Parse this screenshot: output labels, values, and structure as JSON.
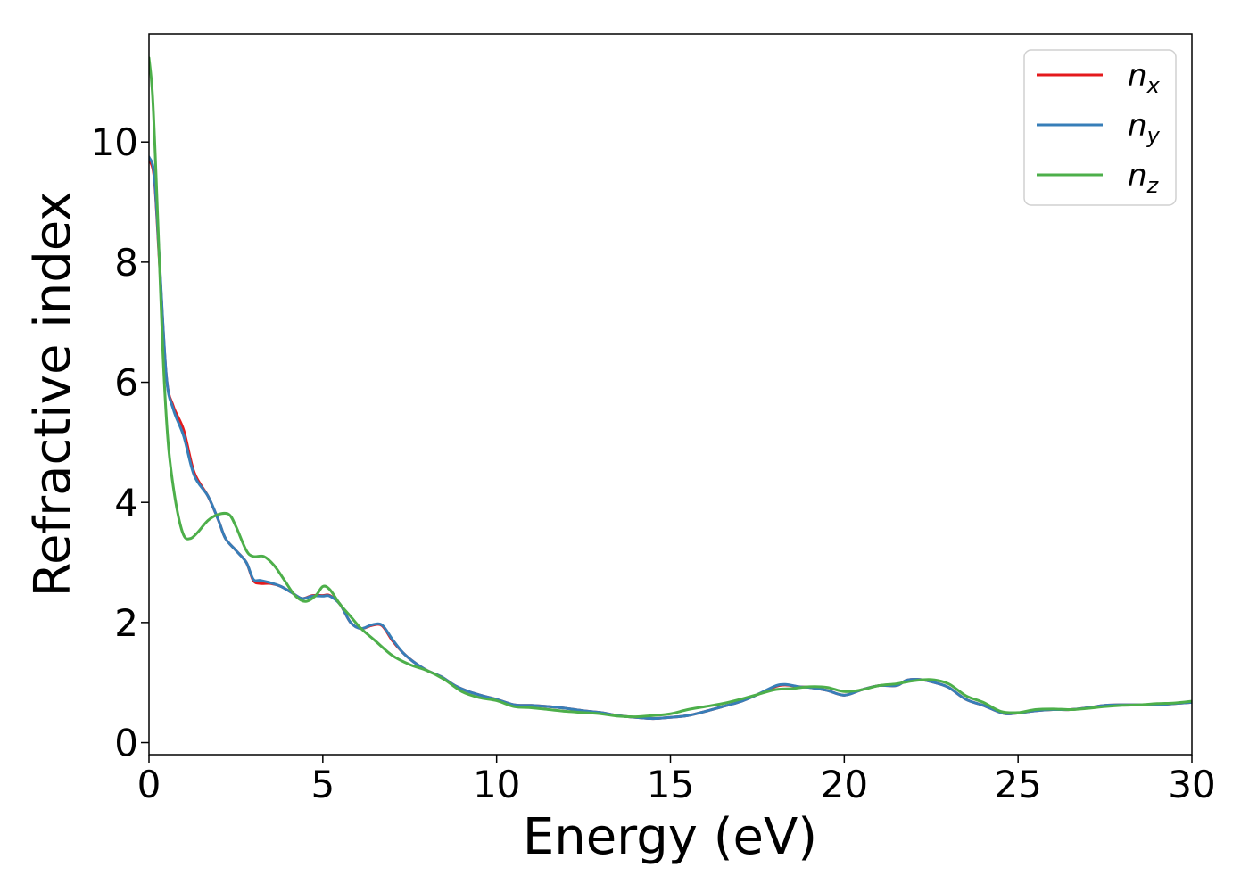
{
  "chart_data": {
    "type": "line",
    "title": "",
    "xlabel": "Energy (eV)",
    "ylabel": "Refractive index",
    "xlim": [
      0,
      30
    ],
    "ylim": [
      -0.2,
      11.8
    ],
    "xticks": [
      0,
      5,
      10,
      15,
      20,
      25,
      30
    ],
    "yticks": [
      0,
      2,
      4,
      6,
      8,
      10
    ],
    "grid": false,
    "legend": "top-right",
    "series": [
      {
        "name": "n",
        "sub": "x",
        "color": "#e41a1c",
        "x": [
          0,
          0.15,
          0.3,
          0.5,
          0.7,
          1.0,
          1.3,
          1.7,
          2.0,
          2.2,
          2.5,
          2.8,
          3.0,
          3.2,
          3.5,
          3.8,
          4.1,
          4.4,
          4.7,
          5.0,
          5.2,
          5.5,
          5.8,
          6.1,
          6.4,
          6.7,
          7.0,
          7.3,
          7.6,
          8.0,
          8.4,
          8.8,
          9.2,
          9.6,
          10.0,
          10.5,
          11.0,
          11.5,
          12.0,
          12.5,
          13.0,
          13.5,
          14.0,
          14.5,
          15.0,
          15.5,
          16.0,
          16.5,
          17.0,
          17.5,
          18.0,
          18.3,
          18.7,
          19.0,
          19.5,
          20.0,
          20.5,
          21.0,
          21.5,
          21.8,
          22.2,
          22.6,
          23.0,
          23.5,
          24.0,
          24.5,
          24.8,
          25.5,
          26.0,
          26.5,
          27.0,
          27.5,
          28.0,
          28.5,
          29.0,
          29.5,
          30.0
        ],
        "y": [
          9.7,
          9.4,
          8.0,
          6.1,
          5.6,
          5.2,
          4.5,
          4.1,
          3.7,
          3.4,
          3.2,
          3.0,
          2.7,
          2.65,
          2.65,
          2.6,
          2.5,
          2.4,
          2.45,
          2.45,
          2.45,
          2.3,
          2.0,
          1.9,
          1.95,
          1.95,
          1.7,
          1.5,
          1.35,
          1.2,
          1.1,
          0.95,
          0.85,
          0.78,
          0.72,
          0.63,
          0.62,
          0.6,
          0.57,
          0.53,
          0.5,
          0.45,
          0.42,
          0.4,
          0.42,
          0.45,
          0.52,
          0.6,
          0.68,
          0.8,
          0.93,
          0.96,
          0.93,
          0.92,
          0.87,
          0.79,
          0.88,
          0.95,
          0.95,
          1.04,
          1.05,
          1.0,
          0.92,
          0.72,
          0.62,
          0.5,
          0.48,
          0.53,
          0.55,
          0.55,
          0.58,
          0.62,
          0.63,
          0.63,
          0.63,
          0.65,
          0.67
        ]
      },
      {
        "name": "n",
        "sub": "y",
        "color": "#377eb8",
        "x": [
          0,
          0.15,
          0.3,
          0.5,
          0.7,
          1.0,
          1.3,
          1.7,
          2.0,
          2.2,
          2.5,
          2.8,
          3.0,
          3.2,
          3.5,
          3.8,
          4.1,
          4.4,
          4.7,
          5.0,
          5.2,
          5.5,
          5.8,
          6.1,
          6.4,
          6.7,
          7.0,
          7.3,
          7.6,
          8.0,
          8.4,
          8.8,
          9.2,
          9.6,
          10.0,
          10.5,
          11.0,
          11.5,
          12.0,
          12.5,
          13.0,
          13.5,
          14.0,
          14.5,
          15.0,
          15.5,
          16.0,
          16.5,
          17.0,
          17.5,
          18.0,
          18.3,
          18.7,
          19.0,
          19.5,
          20.0,
          20.5,
          21.0,
          21.5,
          21.8,
          22.2,
          22.6,
          23.0,
          23.5,
          24.0,
          24.5,
          24.8,
          25.5,
          26.0,
          26.5,
          27.0,
          27.5,
          28.0,
          28.5,
          29.0,
          29.5,
          30.0
        ],
        "y": [
          9.75,
          9.45,
          8.05,
          6.1,
          5.55,
          5.1,
          4.45,
          4.1,
          3.7,
          3.4,
          3.2,
          3.0,
          2.72,
          2.7,
          2.66,
          2.6,
          2.5,
          2.4,
          2.44,
          2.44,
          2.44,
          2.3,
          2.0,
          1.9,
          1.96,
          1.96,
          1.72,
          1.5,
          1.35,
          1.2,
          1.1,
          0.95,
          0.85,
          0.78,
          0.72,
          0.63,
          0.62,
          0.6,
          0.57,
          0.53,
          0.5,
          0.45,
          0.42,
          0.4,
          0.42,
          0.45,
          0.52,
          0.6,
          0.68,
          0.8,
          0.94,
          0.97,
          0.93,
          0.92,
          0.87,
          0.79,
          0.88,
          0.95,
          0.95,
          1.04,
          1.05,
          1.0,
          0.92,
          0.72,
          0.62,
          0.5,
          0.48,
          0.53,
          0.55,
          0.55,
          0.58,
          0.62,
          0.63,
          0.63,
          0.63,
          0.65,
          0.67
        ]
      },
      {
        "name": "n",
        "sub": "z",
        "color": "#4daf4a",
        "x": [
          0,
          0.1,
          0.2,
          0.3,
          0.4,
          0.5,
          0.6,
          0.8,
          1.0,
          1.2,
          1.4,
          1.7,
          2.0,
          2.3,
          2.5,
          2.8,
          3.0,
          3.3,
          3.6,
          3.9,
          4.2,
          4.5,
          4.8,
          5.0,
          5.2,
          5.5,
          5.8,
          6.1,
          6.5,
          7.0,
          7.5,
          8.0,
          8.5,
          9.0,
          9.5,
          10.0,
          10.5,
          11.0,
          11.5,
          12.0,
          12.5,
          13.0,
          13.5,
          14.0,
          14.5,
          15.0,
          15.5,
          16.0,
          16.5,
          17.0,
          17.5,
          18.0,
          18.5,
          19.0,
          19.5,
          20.0,
          20.5,
          21.0,
          21.5,
          22.0,
          22.5,
          23.0,
          23.5,
          24.0,
          24.5,
          25.0,
          25.5,
          26.0,
          26.5,
          27.0,
          27.5,
          28.0,
          28.5,
          29.0,
          29.5,
          30.0
        ],
        "y": [
          11.4,
          10.8,
          9.5,
          8.0,
          6.5,
          5.4,
          4.7,
          3.9,
          3.45,
          3.4,
          3.5,
          3.7,
          3.8,
          3.8,
          3.6,
          3.2,
          3.1,
          3.1,
          2.95,
          2.7,
          2.45,
          2.35,
          2.45,
          2.6,
          2.55,
          2.3,
          2.1,
          1.9,
          1.7,
          1.45,
          1.3,
          1.2,
          1.05,
          0.85,
          0.75,
          0.7,
          0.6,
          0.58,
          0.55,
          0.52,
          0.5,
          0.48,
          0.44,
          0.43,
          0.45,
          0.48,
          0.55,
          0.6,
          0.65,
          0.72,
          0.8,
          0.88,
          0.9,
          0.93,
          0.92,
          0.85,
          0.88,
          0.95,
          0.98,
          1.03,
          1.05,
          0.98,
          0.78,
          0.67,
          0.52,
          0.5,
          0.55,
          0.56,
          0.55,
          0.57,
          0.6,
          0.62,
          0.63,
          0.65,
          0.66,
          0.69
        ]
      }
    ]
  }
}
